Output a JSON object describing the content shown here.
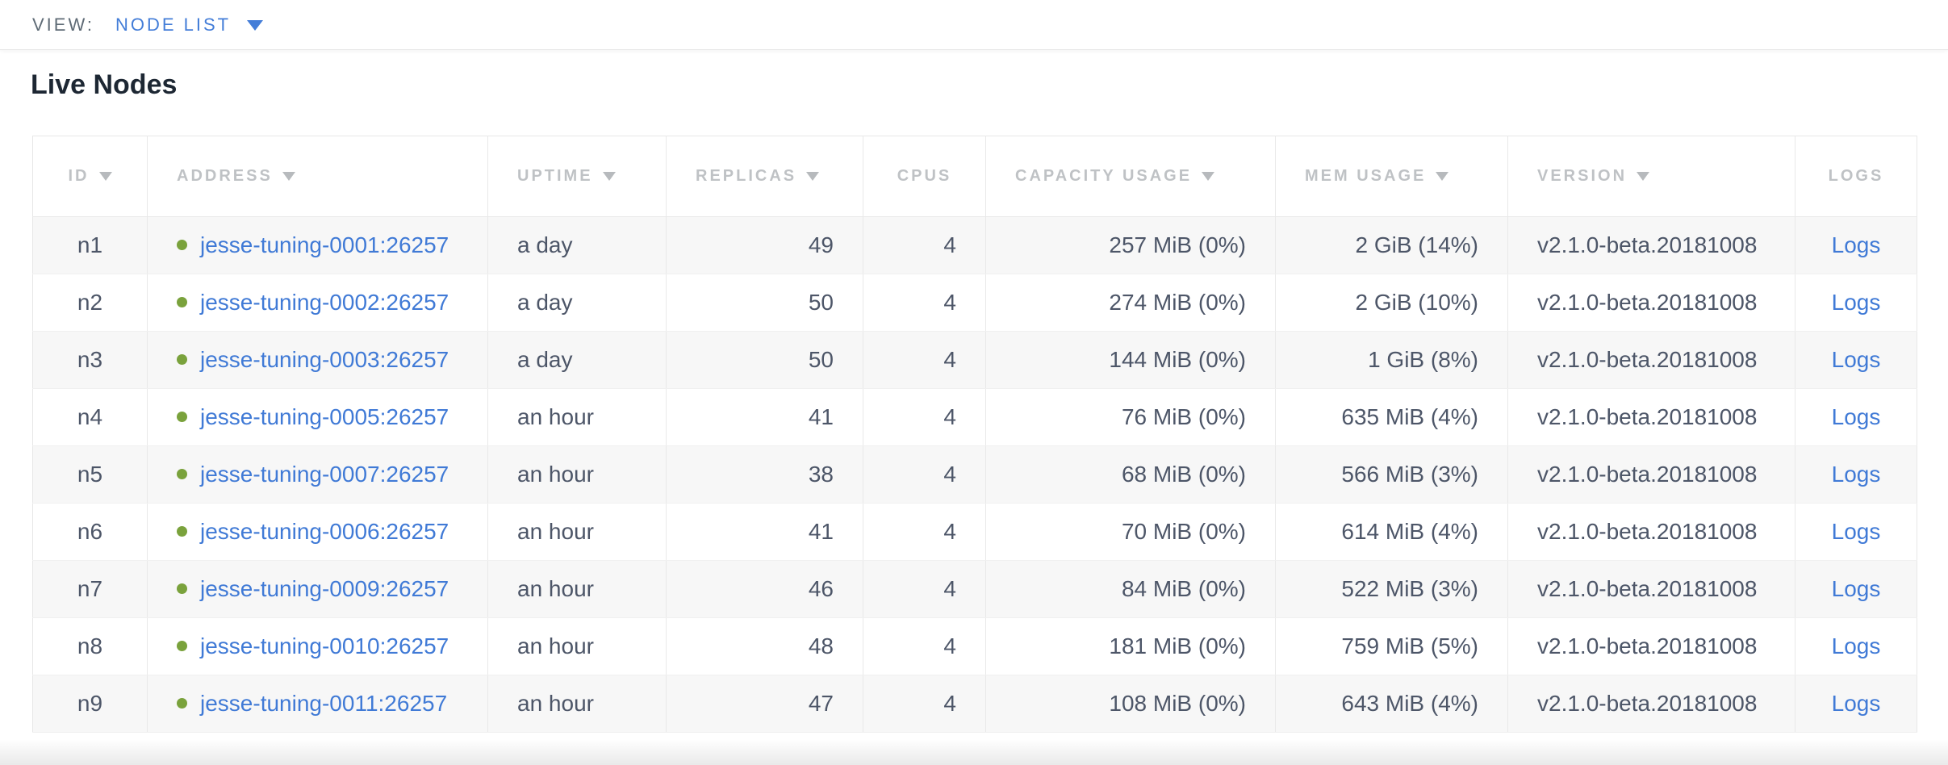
{
  "view_bar": {
    "label": "VIEW:",
    "selected_view": "NODE LIST",
    "dropdown_icon": "caret-down-icon"
  },
  "page": {
    "title": "Live Nodes"
  },
  "table": {
    "status_icon": "green-dot-icon",
    "columns": [
      {
        "key": "id",
        "label": "ID",
        "sortable": true,
        "header_align": "center",
        "cell_align": "center",
        "type": "text"
      },
      {
        "key": "address",
        "label": "ADDRESS",
        "sortable": true,
        "header_align": "left",
        "cell_align": "left",
        "type": "address"
      },
      {
        "key": "uptime",
        "label": "UPTIME",
        "sortable": true,
        "header_align": "left",
        "cell_align": "left",
        "type": "text"
      },
      {
        "key": "replicas",
        "label": "REPLICAS",
        "sortable": true,
        "header_align": "left",
        "cell_align": "right",
        "type": "text"
      },
      {
        "key": "cpus",
        "label": "CPUS",
        "sortable": false,
        "header_align": "center",
        "cell_align": "right",
        "type": "text"
      },
      {
        "key": "capacity",
        "label": "CAPACITY USAGE",
        "sortable": true,
        "header_align": "left",
        "cell_align": "right",
        "type": "text"
      },
      {
        "key": "mem",
        "label": "MEM USAGE",
        "sortable": true,
        "header_align": "left",
        "cell_align": "right",
        "type": "text"
      },
      {
        "key": "version",
        "label": "VERSION",
        "sortable": true,
        "header_align": "left",
        "cell_align": "left",
        "type": "text"
      },
      {
        "key": "logs",
        "label": "LOGS",
        "sortable": false,
        "header_align": "center",
        "cell_align": "center",
        "type": "link"
      }
    ],
    "rows": [
      {
        "id": "n1",
        "address": "jesse-tuning-0001:26257",
        "status": "live",
        "uptime": "a day",
        "replicas": "49",
        "cpus": "4",
        "capacity": "257 MiB (0%)",
        "mem": "2 GiB (14%)",
        "version": "v2.1.0-beta.20181008",
        "logs": "Logs"
      },
      {
        "id": "n2",
        "address": "jesse-tuning-0002:26257",
        "status": "live",
        "uptime": "a day",
        "replicas": "50",
        "cpus": "4",
        "capacity": "274 MiB (0%)",
        "mem": "2 GiB (10%)",
        "version": "v2.1.0-beta.20181008",
        "logs": "Logs"
      },
      {
        "id": "n3",
        "address": "jesse-tuning-0003:26257",
        "status": "live",
        "uptime": "a day",
        "replicas": "50",
        "cpus": "4",
        "capacity": "144 MiB (0%)",
        "mem": "1 GiB (8%)",
        "version": "v2.1.0-beta.20181008",
        "logs": "Logs"
      },
      {
        "id": "n4",
        "address": "jesse-tuning-0005:26257",
        "status": "live",
        "uptime": "an hour",
        "replicas": "41",
        "cpus": "4",
        "capacity": "76 MiB (0%)",
        "mem": "635 MiB (4%)",
        "version": "v2.1.0-beta.20181008",
        "logs": "Logs"
      },
      {
        "id": "n5",
        "address": "jesse-tuning-0007:26257",
        "status": "live",
        "uptime": "an hour",
        "replicas": "38",
        "cpus": "4",
        "capacity": "68 MiB (0%)",
        "mem": "566 MiB (3%)",
        "version": "v2.1.0-beta.20181008",
        "logs": "Logs"
      },
      {
        "id": "n6",
        "address": "jesse-tuning-0006:26257",
        "status": "live",
        "uptime": "an hour",
        "replicas": "41",
        "cpus": "4",
        "capacity": "70 MiB (0%)",
        "mem": "614 MiB (4%)",
        "version": "v2.1.0-beta.20181008",
        "logs": "Logs"
      },
      {
        "id": "n7",
        "address": "jesse-tuning-0009:26257",
        "status": "live",
        "uptime": "an hour",
        "replicas": "46",
        "cpus": "4",
        "capacity": "84 MiB (0%)",
        "mem": "522 MiB (3%)",
        "version": "v2.1.0-beta.20181008",
        "logs": "Logs"
      },
      {
        "id": "n8",
        "address": "jesse-tuning-0010:26257",
        "status": "live",
        "uptime": "an hour",
        "replicas": "48",
        "cpus": "4",
        "capacity": "181 MiB (0%)",
        "mem": "759 MiB (5%)",
        "version": "v2.1.0-beta.20181008",
        "logs": "Logs"
      },
      {
        "id": "n9",
        "address": "jesse-tuning-0011:26257",
        "status": "live",
        "uptime": "an hour",
        "replicas": "47",
        "cpus": "4",
        "capacity": "108 MiB (0%)",
        "mem": "643 MiB (4%)",
        "version": "v2.1.0-beta.20181008",
        "logs": "Logs"
      }
    ]
  },
  "colors": {
    "accent_blue": "#437dd8",
    "link_blue": "#407ad6",
    "status_green_dot": "#7aa23c",
    "header_text_gray": "#bfc2c5",
    "cell_text": "#4d5668",
    "alt_row_bg": "#f7f7f7",
    "title_text": "#1d2733"
  }
}
